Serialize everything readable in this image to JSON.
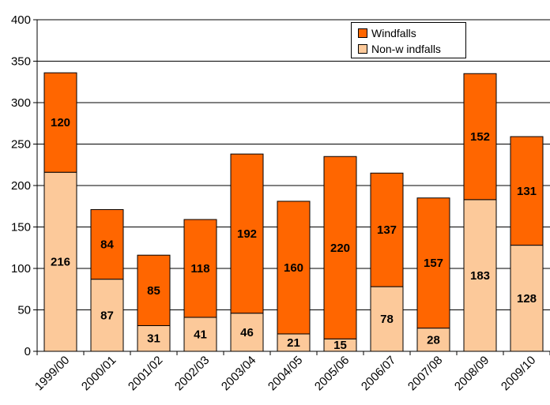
{
  "chart_data": {
    "type": "bar",
    "stacked": true,
    "categories": [
      "1999/00",
      "2000/01",
      "2001/02",
      "2002/03",
      "2003/04",
      "2004/05",
      "2005/06",
      "2006/07",
      "2007/08",
      "2008/09",
      "2009/10"
    ],
    "series": [
      {
        "name": "Non-w indfalls",
        "values": [
          216,
          87,
          31,
          41,
          46,
          21,
          15,
          78,
          28,
          183,
          128
        ],
        "color": "#fcc99a"
      },
      {
        "name": "Windfalls",
        "values": [
          120,
          84,
          85,
          118,
          192,
          160,
          220,
          137,
          157,
          152,
          131
        ],
        "color": "#ff6600"
      }
    ],
    "ylim": [
      0,
      400
    ],
    "yticks": [
      0,
      50,
      100,
      150,
      200,
      250,
      300,
      350,
      400
    ],
    "grid": true,
    "legend_position": "top-right"
  },
  "legend": {
    "windfalls_label": "Windfalls",
    "nonwindfalls_label": "Non-w indfalls"
  }
}
